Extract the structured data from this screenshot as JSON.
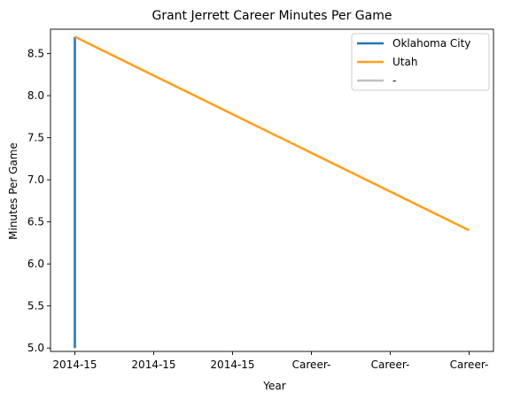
{
  "chart_data": {
    "type": "line",
    "title": "Grant Jerrett Career Minutes Per Game",
    "xlabel": "Year",
    "ylabel": "Minutes Per Game",
    "x_tick_labels": [
      "2014-15",
      "2014-15",
      "2014-15",
      "Career-",
      "Career-",
      "Career-"
    ],
    "x_range": [
      0,
      5
    ],
    "ylim": [
      4.96,
      8.79
    ],
    "y_ticks": [
      5.0,
      5.5,
      6.0,
      6.5,
      7.0,
      7.5,
      8.0,
      8.5
    ],
    "y_tick_labels": [
      "5.0",
      "5.5",
      "6.0",
      "6.5",
      "7.0",
      "7.5",
      "8.0",
      "8.5"
    ],
    "grid": false,
    "legend_position": "top-right",
    "series": [
      {
        "name": "Oklahoma City",
        "color": "#1f77b4",
        "x": [
          0,
          0
        ],
        "y": [
          5.0,
          8.7
        ]
      },
      {
        "name": "Utah",
        "color": "#ff9f1c",
        "x": [
          0,
          5
        ],
        "y": [
          8.7,
          6.4
        ]
      },
      {
        "name": "-",
        "color": "#c0c0c0",
        "x": [],
        "y": []
      }
    ]
  }
}
